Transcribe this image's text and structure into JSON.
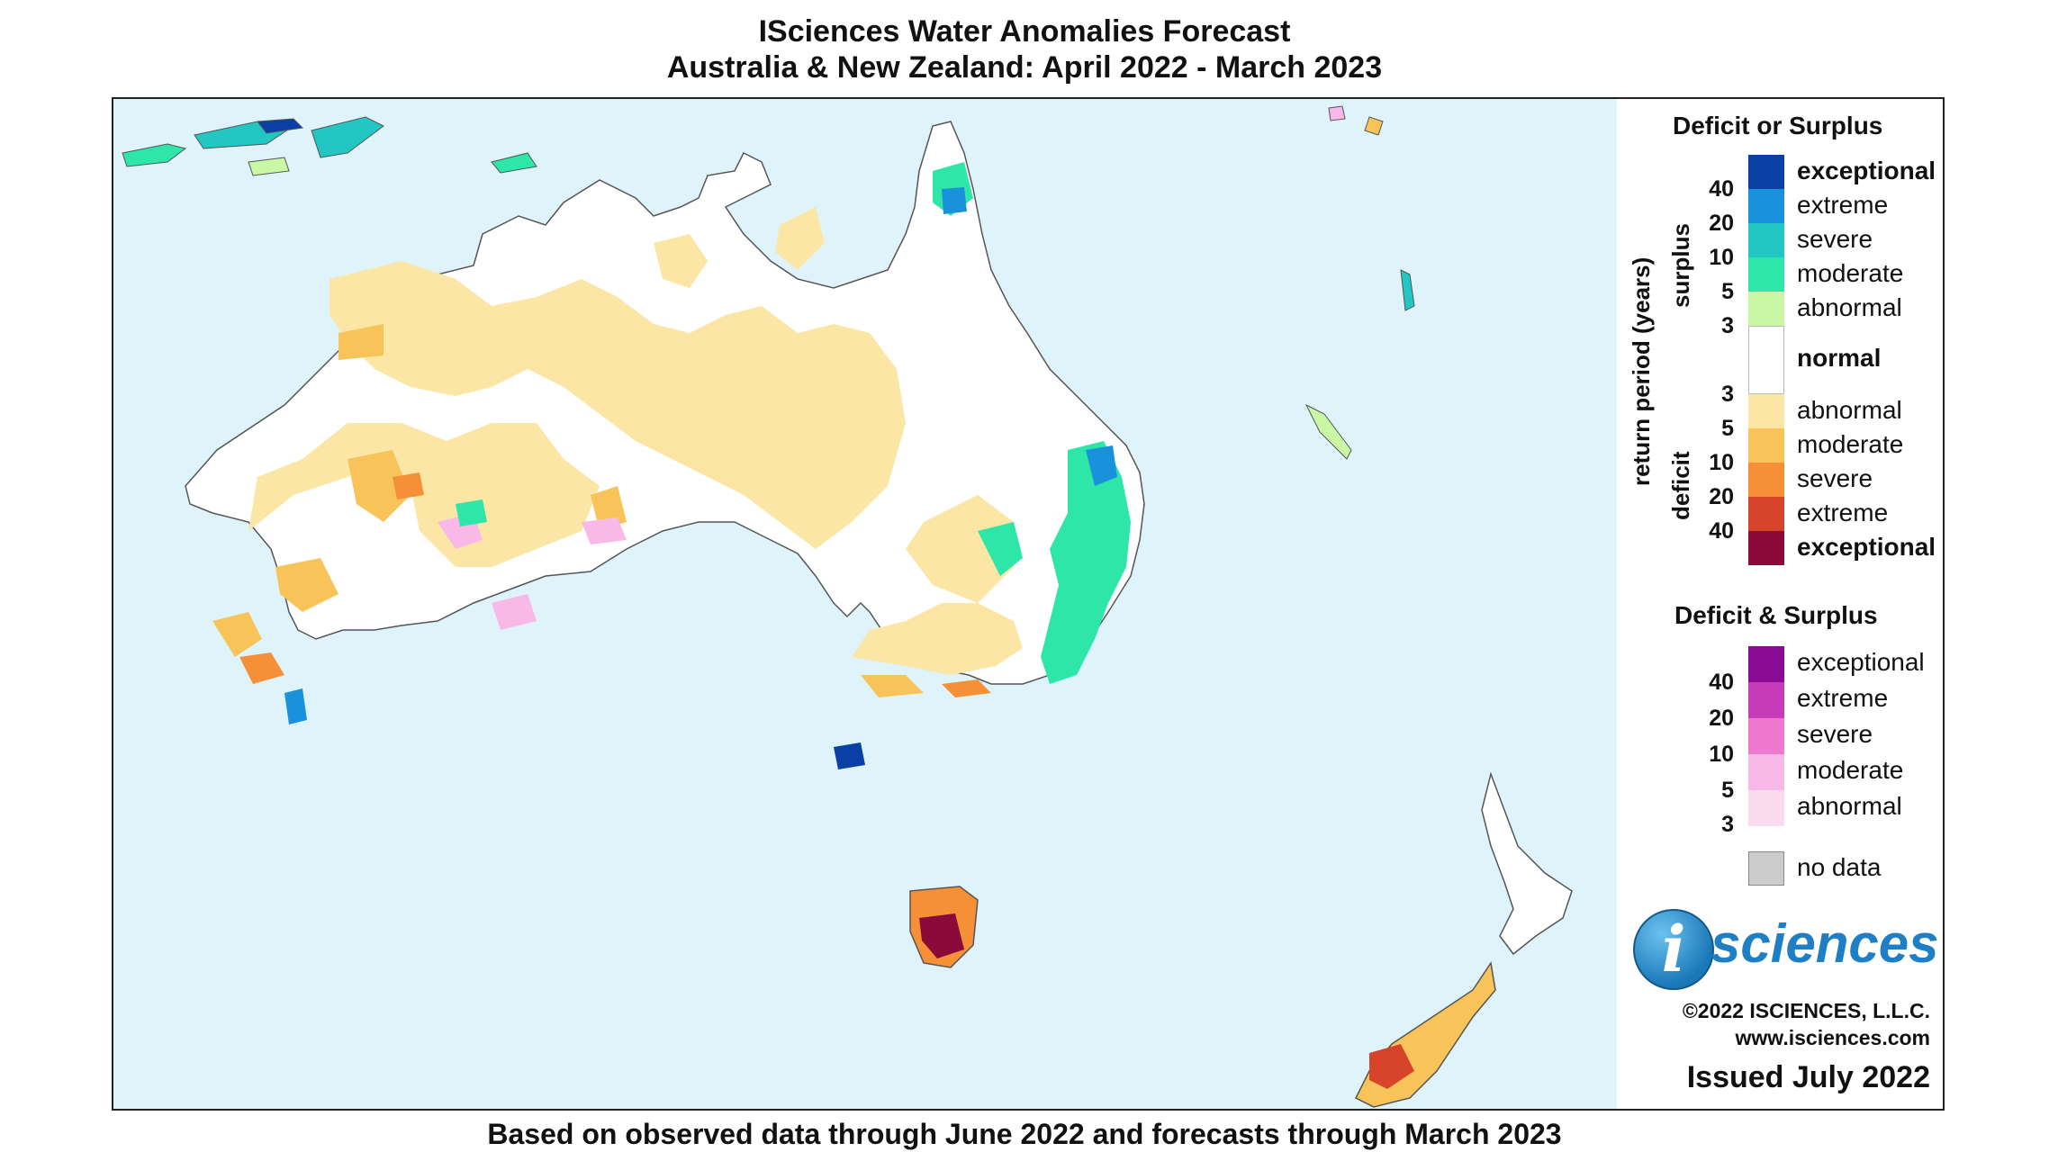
{
  "title": {
    "line1": "ISciences Water Anomalies Forecast",
    "line2": "Australia & New Zealand: April 2022 - March 2023"
  },
  "footer": "Based on observed data through June 2022 and forecasts through March 2023",
  "legend": {
    "deficit_or_surplus": {
      "heading": "Deficit or Surplus",
      "axis_label": "return period (years)",
      "surplus_label": "surplus",
      "deficit_label": "deficit",
      "surplus_categories": [
        {
          "label": "exceptional",
          "color": "#0a3fa6",
          "bold": true
        },
        {
          "label": "extreme",
          "color": "#1a92db",
          "bold": false
        },
        {
          "label": "severe",
          "color": "#22c7c4",
          "bold": false
        },
        {
          "label": "moderate",
          "color": "#2ee6a8",
          "bold": false
        },
        {
          "label": "abnormal",
          "color": "#c9f7a6",
          "bold": false
        }
      ],
      "normal": {
        "label": "normal",
        "color": "#ffffff"
      },
      "deficit_categories": [
        {
          "label": "abnormal",
          "color": "#fbe6a6",
          "bold": false
        },
        {
          "label": "moderate",
          "color": "#f8c45a",
          "bold": false
        },
        {
          "label": "severe",
          "color": "#f59036",
          "bold": false
        },
        {
          "label": "extreme",
          "color": "#d8432b",
          "bold": false
        },
        {
          "label": "exceptional",
          "color": "#8b0a3a",
          "bold": true
        }
      ],
      "surplus_ticks": [
        "40",
        "20",
        "10",
        "5",
        "3"
      ],
      "deficit_ticks": [
        "3",
        "5",
        "10",
        "20",
        "40"
      ]
    },
    "deficit_and_surplus": {
      "heading": "Deficit & Surplus",
      "categories": [
        {
          "label": "exceptional",
          "color": "#8a0c95"
        },
        {
          "label": "extreme",
          "color": "#c63bb8"
        },
        {
          "label": "severe",
          "color": "#ef78cf"
        },
        {
          "label": "moderate",
          "color": "#f8b9e8"
        },
        {
          "label": "abnormal",
          "color": "#fbdcef"
        }
      ],
      "ticks": [
        "40",
        "20",
        "10",
        "5",
        "3"
      ]
    },
    "no_data": {
      "label": "no data",
      "color": "#cccccc"
    }
  },
  "branding": {
    "logo_letter": "i",
    "logo_word": "sciences",
    "copyright": "©2022 ISCIENCES, L.L.C.",
    "website": "www.isciences.com",
    "issued": "Issued July 2022"
  },
  "map": {
    "ocean_color": "#dff3fb",
    "land_color": "#ffffff"
  }
}
